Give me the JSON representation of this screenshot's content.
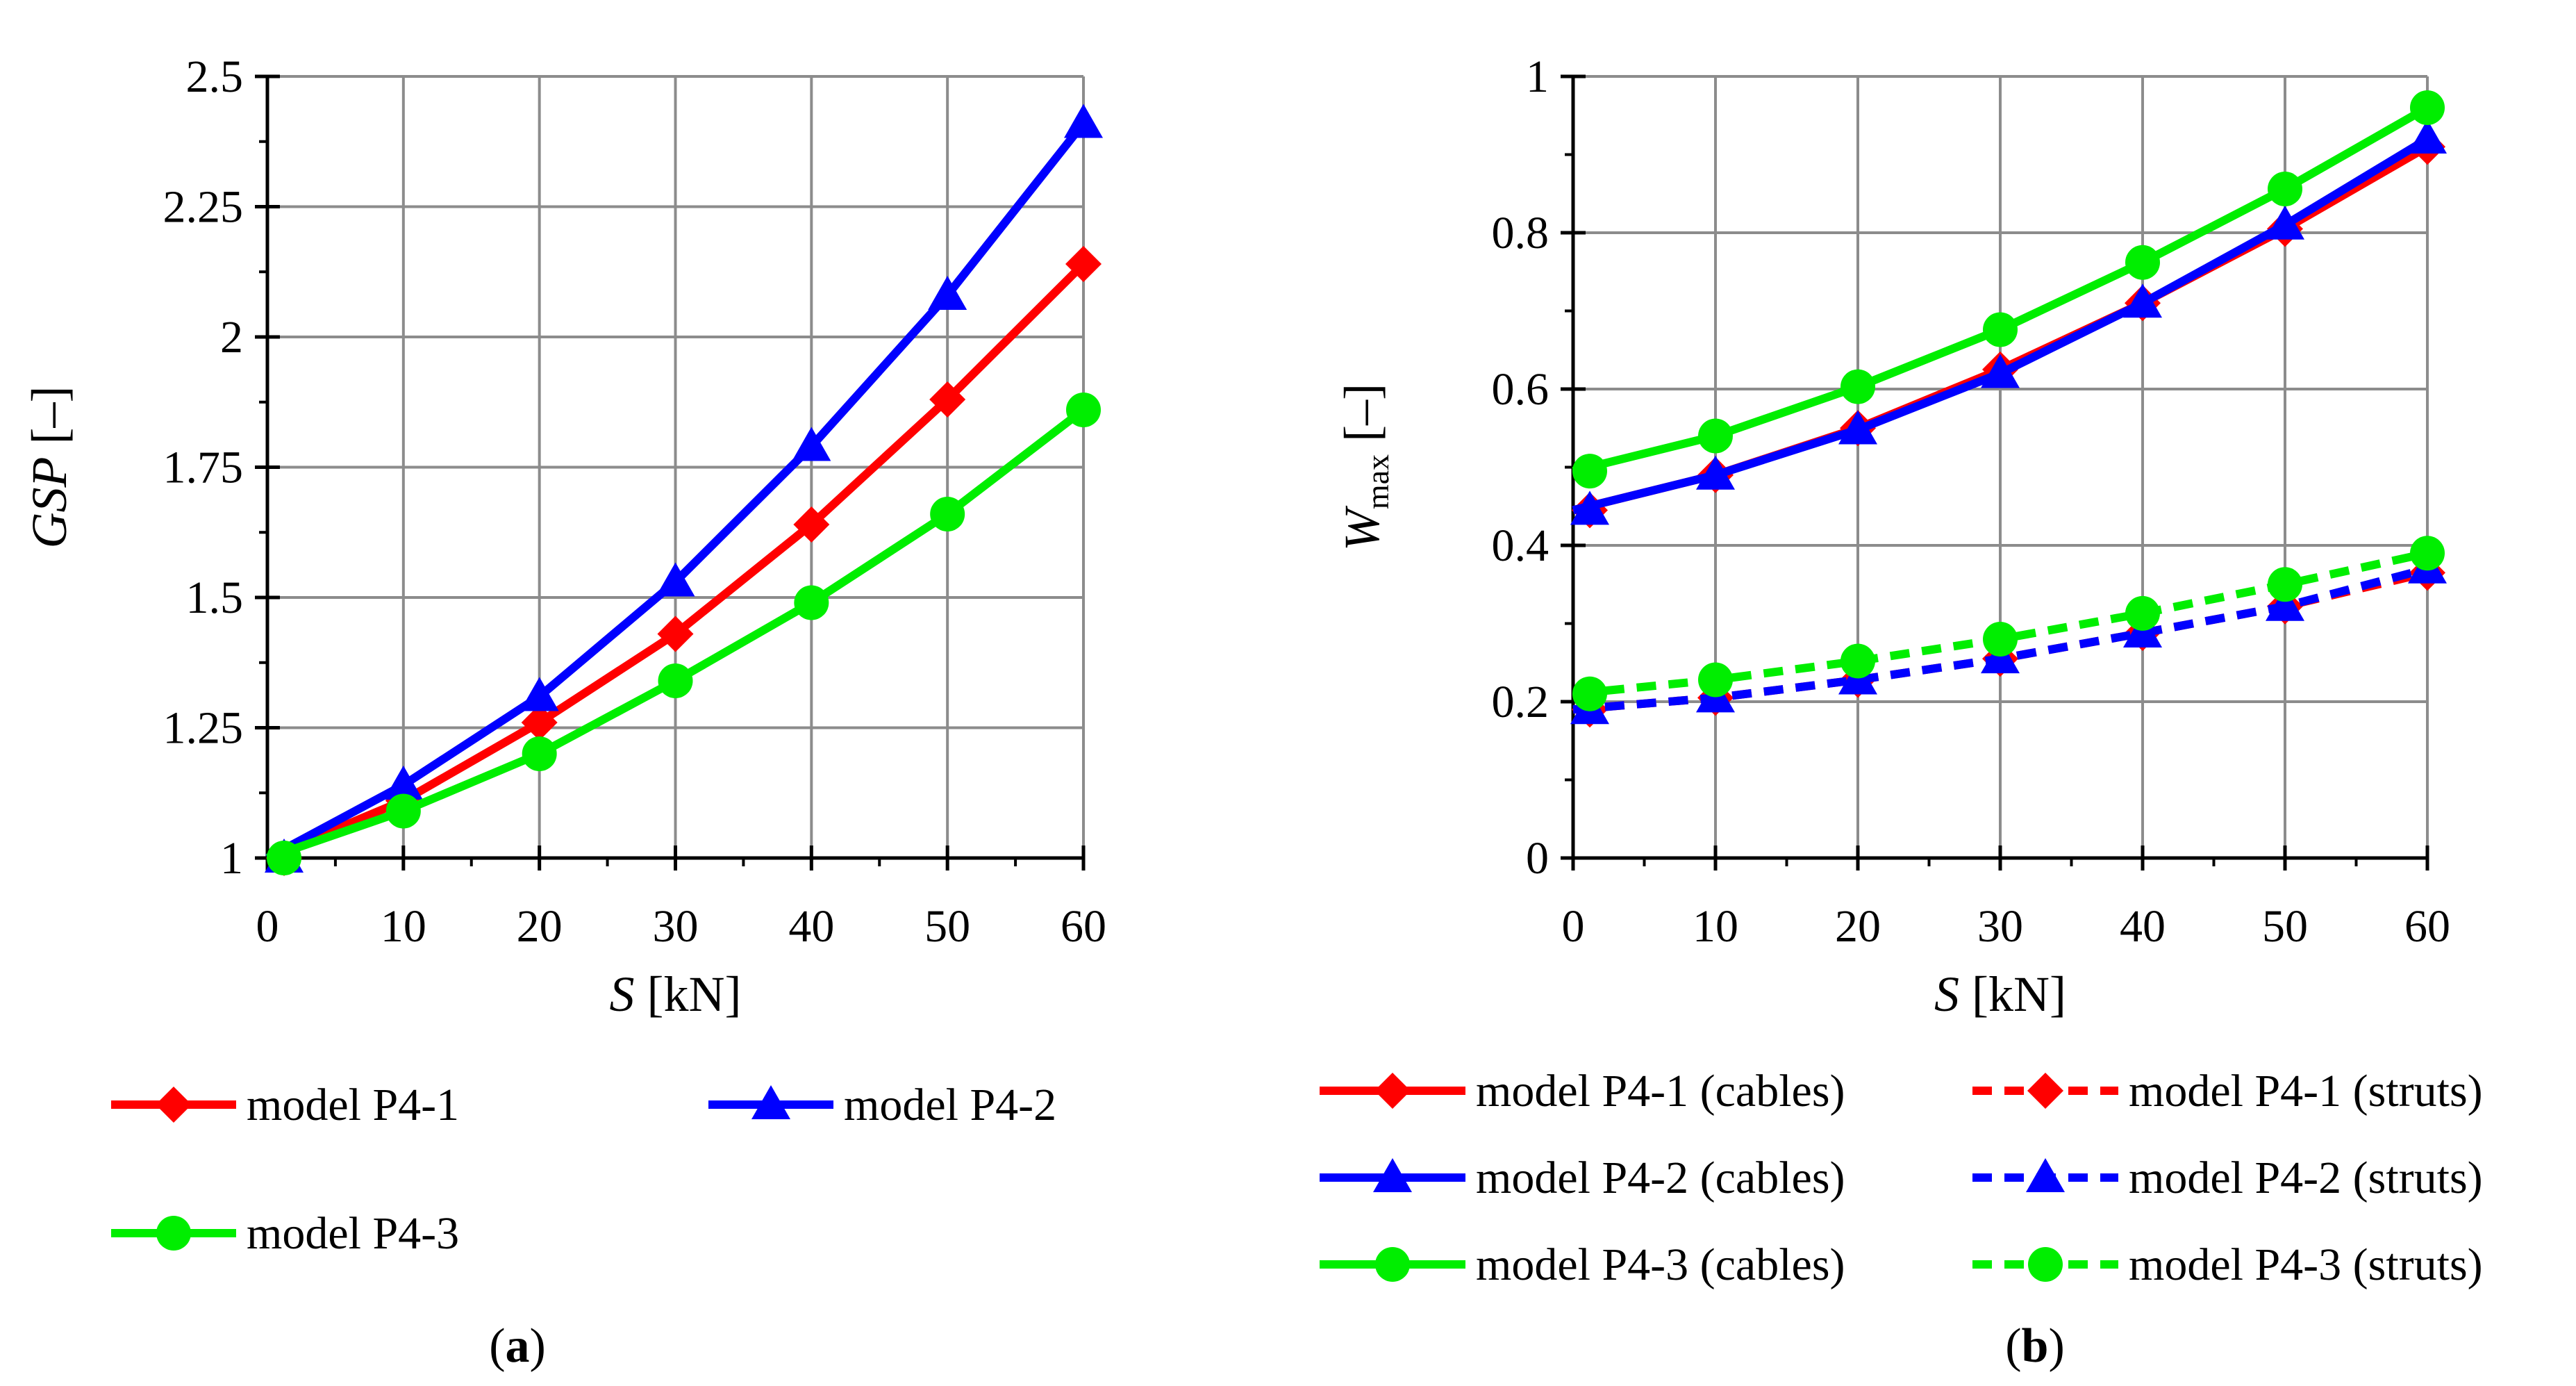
{
  "chart_data": [
    {
      "panel": "a",
      "type": "line",
      "panel_label": {
        "open": "(",
        "letter": "a",
        "close": ")"
      },
      "ylabel": {
        "italic": "GSP",
        "rest": " [–]"
      },
      "xlabel": {
        "italic": "S",
        "rest": " [kN]"
      },
      "xlim": [
        0,
        60
      ],
      "ylim": [
        1,
        2.5
      ],
      "xticks": [
        "0",
        "10",
        "20",
        "30",
        "40",
        "50",
        "60"
      ],
      "yticks": [
        "1",
        "1.25",
        "1.5",
        "1.75",
        "2",
        "2.25",
        "2.5"
      ],
      "grid": true,
      "x": [
        0,
        10,
        20,
        30,
        40,
        50,
        60
      ],
      "series": [
        {
          "name": "model P4-1",
          "color": "#ff0000",
          "marker": "diamond",
          "dash": "solid",
          "values": [
            1.0,
            1.11,
            1.26,
            1.43,
            1.64,
            1.88,
            2.14
          ]
        },
        {
          "name": "model P4-2",
          "color": "#0000ff",
          "marker": "triangle",
          "dash": "solid",
          "values": [
            1.0,
            1.14,
            1.31,
            1.53,
            1.79,
            2.08,
            2.41
          ]
        },
        {
          "name": "model P4-3",
          "color": "#00ee00",
          "marker": "circle",
          "dash": "solid",
          "values": [
            1.0,
            1.09,
            1.2,
            1.34,
            1.49,
            1.66,
            1.86
          ]
        }
      ]
    },
    {
      "panel": "b",
      "type": "line",
      "panel_label": {
        "open": "(",
        "letter": "b",
        "close": ")"
      },
      "ylabel": {
        "italic": "W",
        "sub": "max",
        "rest": " [–]"
      },
      "xlabel": {
        "italic": "S",
        "rest": " [kN]"
      },
      "xlim": [
        0,
        60
      ],
      "ylim": [
        0,
        1
      ],
      "xticks": [
        "0",
        "10",
        "20",
        "30",
        "40",
        "50",
        "60"
      ],
      "yticks": [
        "0",
        "0.2",
        "0.4",
        "0.6",
        "0.8",
        "1"
      ],
      "grid": true,
      "x": [
        0,
        10,
        20,
        30,
        40,
        50,
        60
      ],
      "series": [
        {
          "name": "model P4-1 (cables)",
          "color": "#ff0000",
          "marker": "diamond",
          "dash": "solid",
          "values": [
            0.445,
            0.49,
            0.55,
            0.625,
            0.71,
            0.805,
            0.91
          ]
        },
        {
          "name": "model P4-2 (cables)",
          "color": "#0000ff",
          "marker": "triangle",
          "dash": "solid",
          "values": [
            0.445,
            0.49,
            0.548,
            0.62,
            0.71,
            0.81,
            0.92
          ]
        },
        {
          "name": "model P4-3 (cables)",
          "color": "#00ee00",
          "marker": "circle",
          "dash": "solid",
          "values": [
            0.495,
            0.54,
            0.603,
            0.676,
            0.762,
            0.856,
            0.96
          ]
        },
        {
          "name": "model P4-1 (struts)",
          "color": "#ff0000",
          "marker": "diamond",
          "dash": "dashed",
          "values": [
            0.19,
            0.205,
            0.228,
            0.255,
            0.288,
            0.322,
            0.365
          ]
        },
        {
          "name": "model P4-2 (struts)",
          "color": "#0000ff",
          "marker": "triangle",
          "dash": "dashed",
          "values": [
            0.19,
            0.205,
            0.228,
            0.255,
            0.288,
            0.322,
            0.37
          ]
        },
        {
          "name": "model P4-3 (struts)",
          "color": "#00ee00",
          "marker": "circle",
          "dash": "dashed",
          "values": [
            0.21,
            0.228,
            0.252,
            0.28,
            0.313,
            0.35,
            0.39
          ]
        }
      ]
    }
  ]
}
